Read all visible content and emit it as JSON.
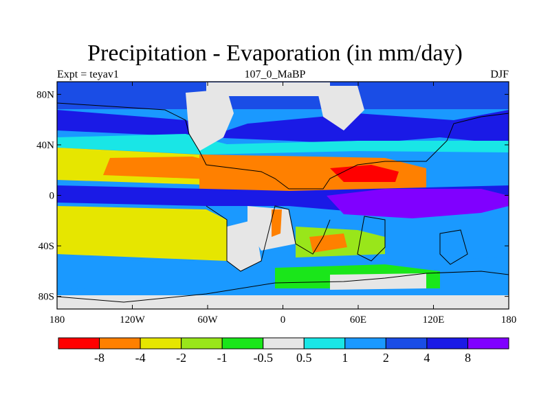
{
  "title": "Precipitation - Evaporation (in mm/day)",
  "subtitle_left": "Expt = teyav1",
  "subtitle_center": "107_0_MaBP",
  "subtitle_right": "DJF",
  "map": {
    "projection": "cylindrical-equidistant",
    "lon_range": [
      -180,
      180
    ],
    "lat_range": [
      -90,
      90
    ],
    "x_ticks": [
      {
        "lon": -180,
        "label": "180"
      },
      {
        "lon": -120,
        "label": "120W"
      },
      {
        "lon": -60,
        "label": "60W"
      },
      {
        "lon": 0,
        "label": "0"
      },
      {
        "lon": 60,
        "label": "60E"
      },
      {
        "lon": 120,
        "label": "120E"
      },
      {
        "lon": 180,
        "label": "180"
      }
    ],
    "y_ticks": [
      {
        "lat": 80,
        "label": "80N"
      },
      {
        "lat": 40,
        "label": "40N"
      },
      {
        "lat": 0,
        "label": "0"
      },
      {
        "lat": -40,
        "label": "40S"
      },
      {
        "lat": -80,
        "label": "80S"
      }
    ]
  },
  "colorbar": {
    "colors": [
      "#ff0000",
      "#ff8000",
      "#e6e600",
      "#99e61a",
      "#1ae61a",
      "#e6e6e6",
      "#19e6e6",
      "#1a99ff",
      "#1a4de6",
      "#1a1ae6",
      "#8000ff"
    ],
    "labels": [
      "-8",
      "-4",
      "-2",
      "-1",
      "-0.5",
      "0.5",
      "1",
      "2",
      "4",
      "8"
    ]
  }
}
